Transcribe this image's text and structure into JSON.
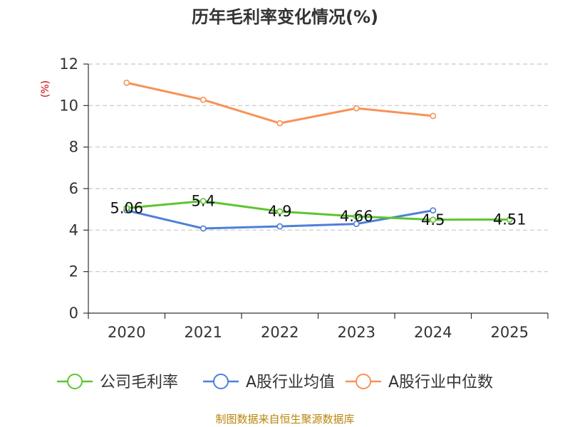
{
  "chart_data": {
    "type": "line",
    "title": "历年毛利率变化情况(%)",
    "ylabel": "(%)",
    "xlabel": "",
    "categories": [
      "2020",
      "2021",
      "2022",
      "2023",
      "2024",
      "2025"
    ],
    "ylim": [
      0,
      12
    ],
    "yticks": [
      0,
      2,
      4,
      6,
      8,
      10,
      12
    ],
    "grid": true,
    "legend_position": "bottom",
    "series": [
      {
        "name": "公司毛利率",
        "color": "#5cc530",
        "values": [
          5.06,
          5.4,
          4.9,
          4.66,
          4.5,
          4.51
        ],
        "labels": [
          "5.06",
          "5.4",
          "4.9",
          "4.66",
          "4.5",
          "4.51"
        ]
      },
      {
        "name": "A股行业均值",
        "color": "#4f7fd8",
        "values": [
          4.95,
          4.08,
          4.18,
          4.3,
          4.95,
          null
        ]
      },
      {
        "name": "A股行业中位数",
        "color": "#f79257",
        "values": [
          11.1,
          10.28,
          9.15,
          9.87,
          9.5,
          null
        ]
      }
    ]
  },
  "source": "制图数据来自恒生聚源数据库"
}
